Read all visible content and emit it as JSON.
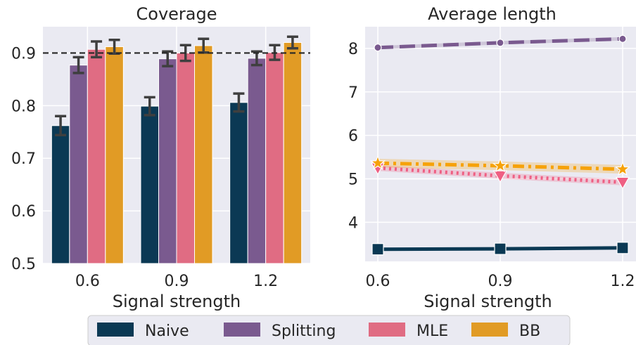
{
  "chart_data": [
    {
      "type": "bar",
      "title": "Coverage",
      "xlabel": "Signal strength",
      "ylabel": "",
      "categories": [
        "0.6",
        "0.9",
        "1.2"
      ],
      "ylim": [
        0.5,
        0.95
      ],
      "yticks": [
        "0.5",
        "0.6",
        "0.7",
        "0.8",
        "0.9"
      ],
      "reference_line": 0.9,
      "series": [
        {
          "name": "Naive",
          "color": "#0b3954",
          "values": [
            0.762,
            0.799,
            0.806
          ],
          "err": [
            0.018,
            0.017,
            0.017
          ]
        },
        {
          "name": "Splitting",
          "color": "#7a5a8f",
          "values": [
            0.877,
            0.889,
            0.89
          ],
          "err": [
            0.015,
            0.014,
            0.013
          ]
        },
        {
          "name": "MLE",
          "color": "#e06c83",
          "values": [
            0.907,
            0.9,
            0.901
          ],
          "err": [
            0.015,
            0.015,
            0.014
          ]
        },
        {
          "name": "BB",
          "color": "#e19b25",
          "values": [
            0.912,
            0.914,
            0.92
          ],
          "err": [
            0.013,
            0.013,
            0.011
          ]
        }
      ]
    },
    {
      "type": "line",
      "title": "Average length",
      "xlabel": "Signal strength",
      "ylabel": "",
      "x": [
        0.6,
        0.9,
        1.2
      ],
      "xticks": [
        "0.6",
        "0.9",
        "1.2"
      ],
      "ylim": [
        3.1,
        8.5
      ],
      "yticks": [
        "4",
        "5",
        "6",
        "7",
        "8"
      ],
      "series": [
        {
          "name": "Naive",
          "color": "#0b3954",
          "marker": "square",
          "linestyle": "solid",
          "values": [
            3.38,
            3.39,
            3.41
          ],
          "band": 0.03
        },
        {
          "name": "Splitting",
          "color": "#7a5a8f",
          "marker": "circle",
          "linestyle": "dashed",
          "values": [
            8.02,
            8.13,
            8.22
          ],
          "band": 0.04
        },
        {
          "name": "MLE",
          "color": "#ef5f83",
          "marker": "triangle-down",
          "linestyle": "dotted",
          "values": [
            5.25,
            5.07,
            4.92
          ],
          "band": 0.07
        },
        {
          "name": "BB",
          "color": "#f6a20a",
          "marker": "star",
          "linestyle": "dashdot",
          "values": [
            5.36,
            5.3,
            5.22
          ],
          "band": 0.1
        }
      ]
    }
  ],
  "legend": {
    "placement": "bottom-center",
    "items": [
      {
        "label": "Naive",
        "color": "#0b3954"
      },
      {
        "label": "Splitting",
        "color": "#7a5a8f"
      },
      {
        "label": "MLE",
        "color": "#e06c83"
      },
      {
        "label": "BB",
        "color": "#e19b25"
      }
    ]
  },
  "colors": {
    "panel_bg": "#eaeaf2",
    "grid": "#ffffff",
    "errorbar": "#3f3f3f",
    "refline": "#262626"
  }
}
